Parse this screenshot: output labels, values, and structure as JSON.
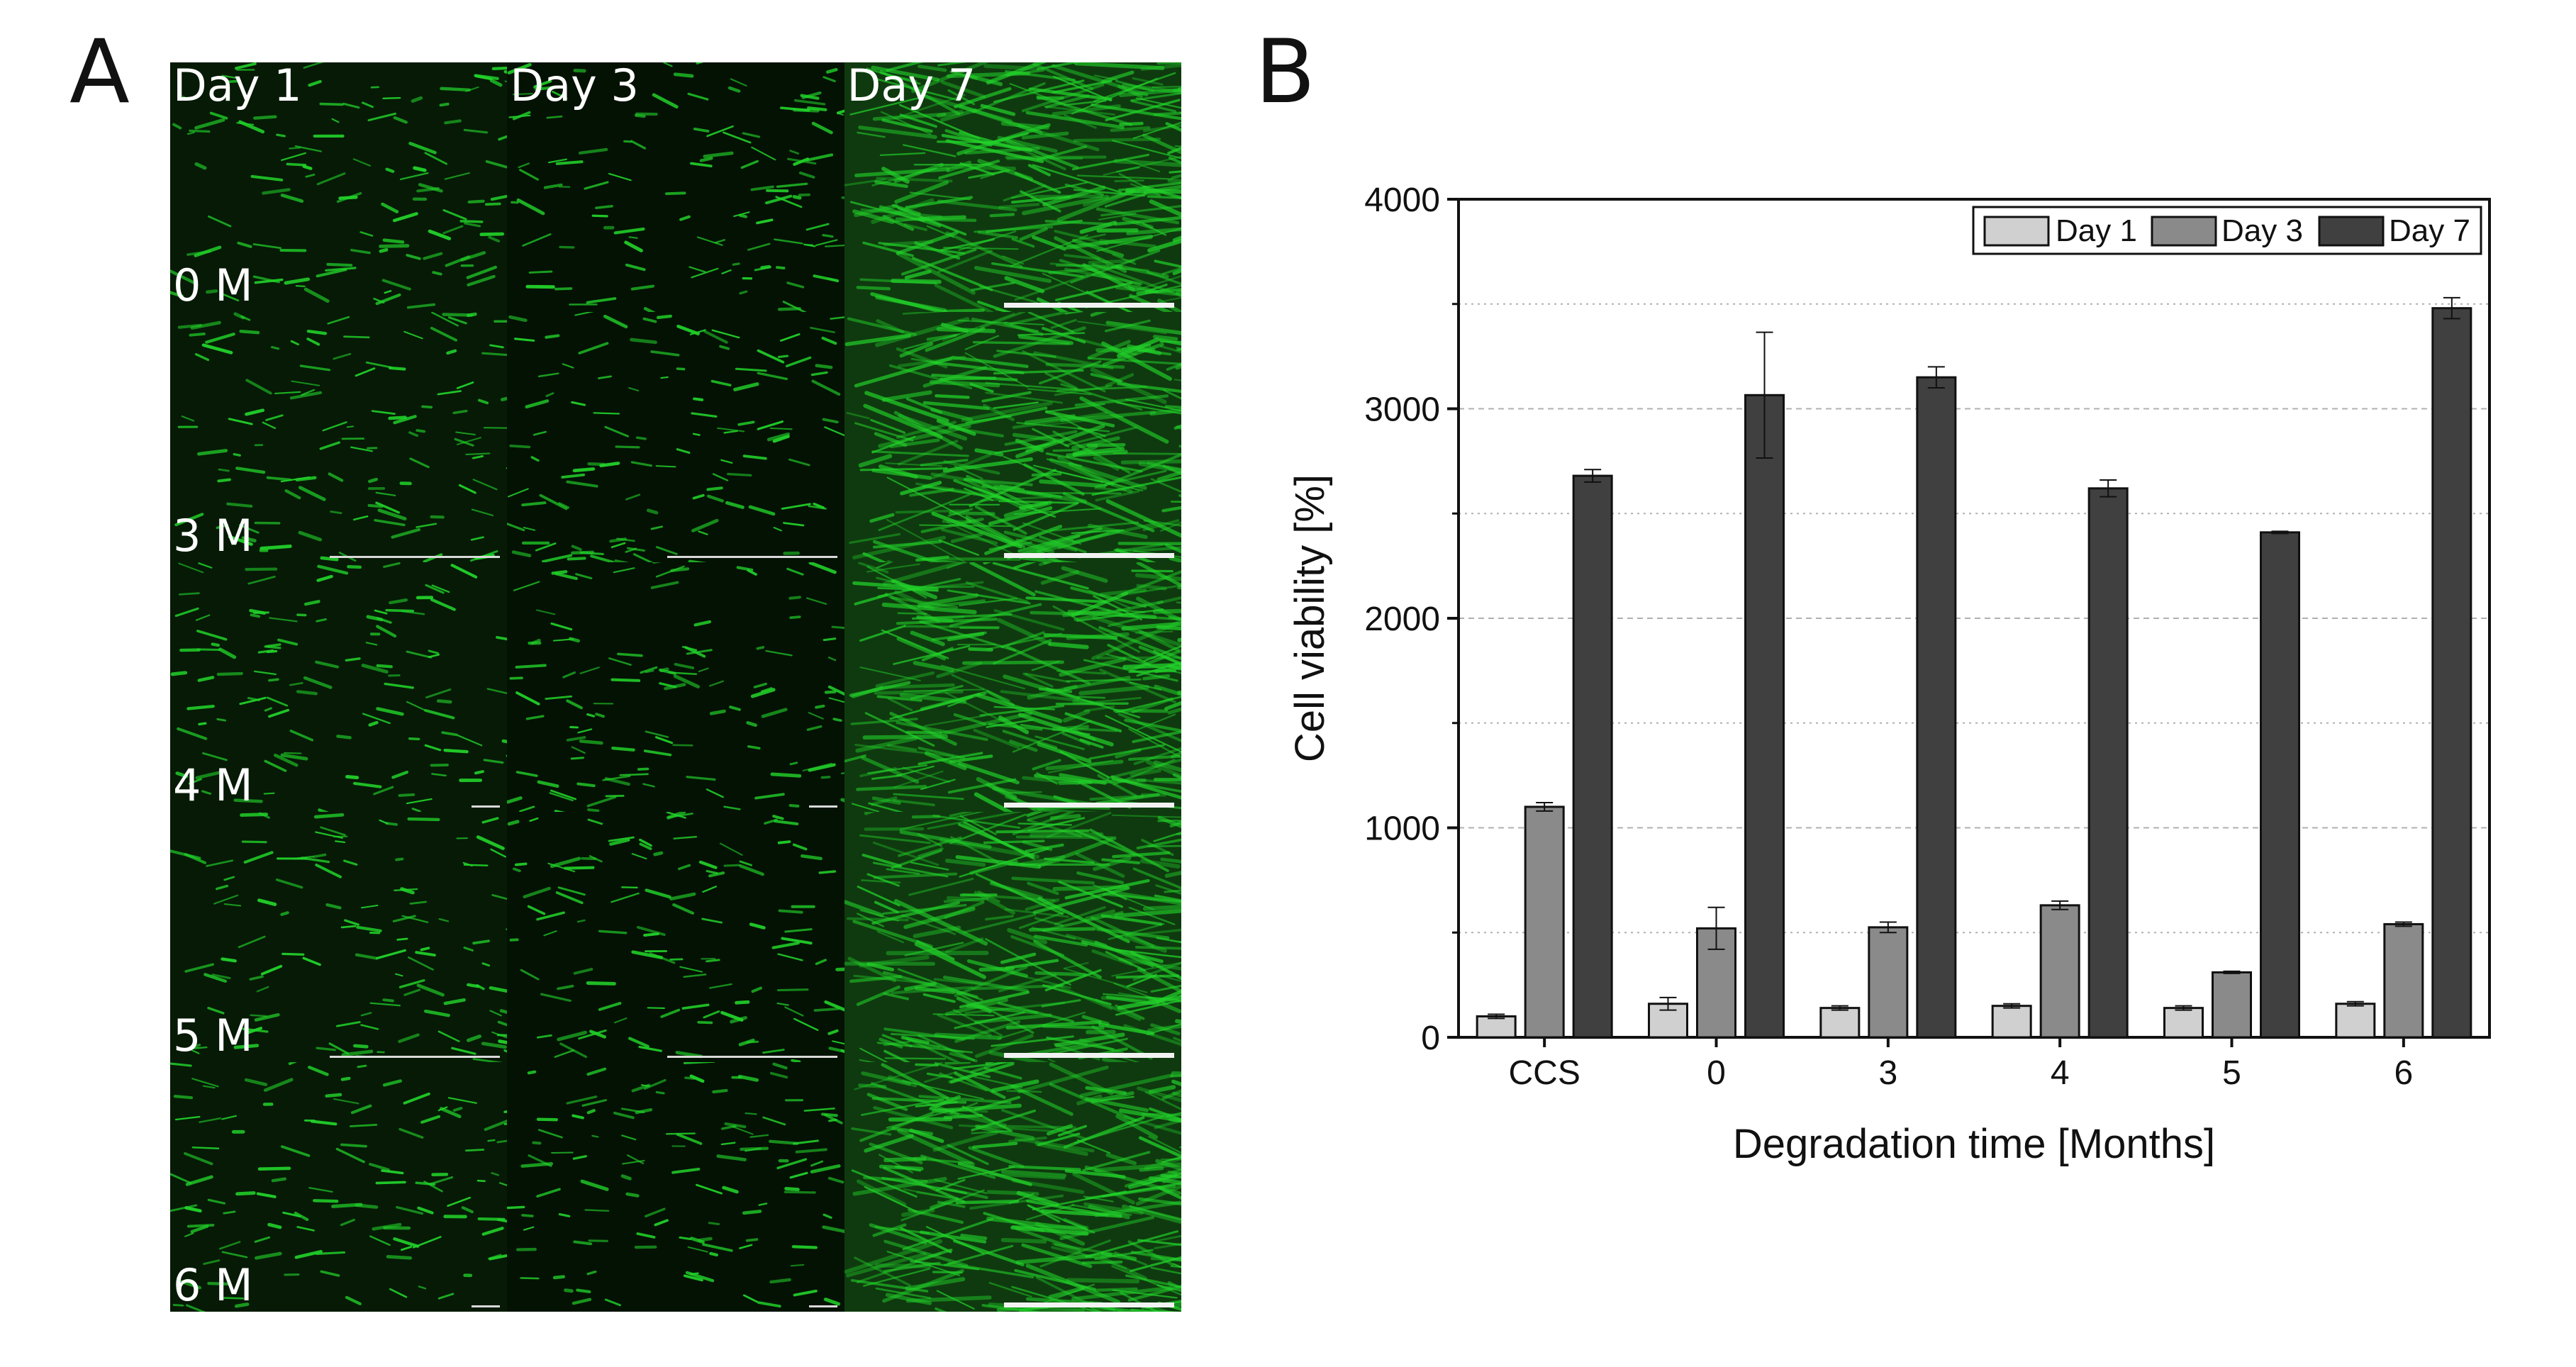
{
  "panel_a": {
    "letter": "A",
    "columns": [
      "Day 1",
      "Day 3",
      "Day 7"
    ],
    "rows": [
      "0 M",
      "3 M",
      "4 M",
      "5 M",
      "6 M"
    ],
    "stain_color": "#22d32a"
  },
  "panel_b": {
    "letter": "B"
  },
  "chart_data": {
    "type": "bar",
    "title": "",
    "xlabel": "Degradation time [Months]",
    "ylabel": "Cell viability [%]",
    "categories": [
      "CCS",
      "0",
      "3",
      "4",
      "5",
      "6"
    ],
    "ylim": [
      0,
      4000
    ],
    "yticks": [
      0,
      1000,
      2000,
      3000,
      4000
    ],
    "grid": "dashed-horizontal",
    "legend_position": "top-right",
    "series": [
      {
        "name": "Day 1",
        "color": "#d0d0d0",
        "values": [
          100,
          160,
          140,
          150,
          140,
          160
        ],
        "errors": [
          10,
          30,
          10,
          10,
          10,
          10
        ]
      },
      {
        "name": "Day 3",
        "color": "#8a8a8a",
        "values": [
          1100,
          520,
          525,
          630,
          310,
          540
        ],
        "errors": [
          20,
          100,
          25,
          20,
          5,
          10
        ]
      },
      {
        "name": "Day 7",
        "color": "#404040",
        "values": [
          2680,
          3065,
          3150,
          2620,
          2410,
          3480
        ],
        "errors": [
          30,
          300,
          50,
          40,
          5,
          50
        ]
      }
    ]
  }
}
